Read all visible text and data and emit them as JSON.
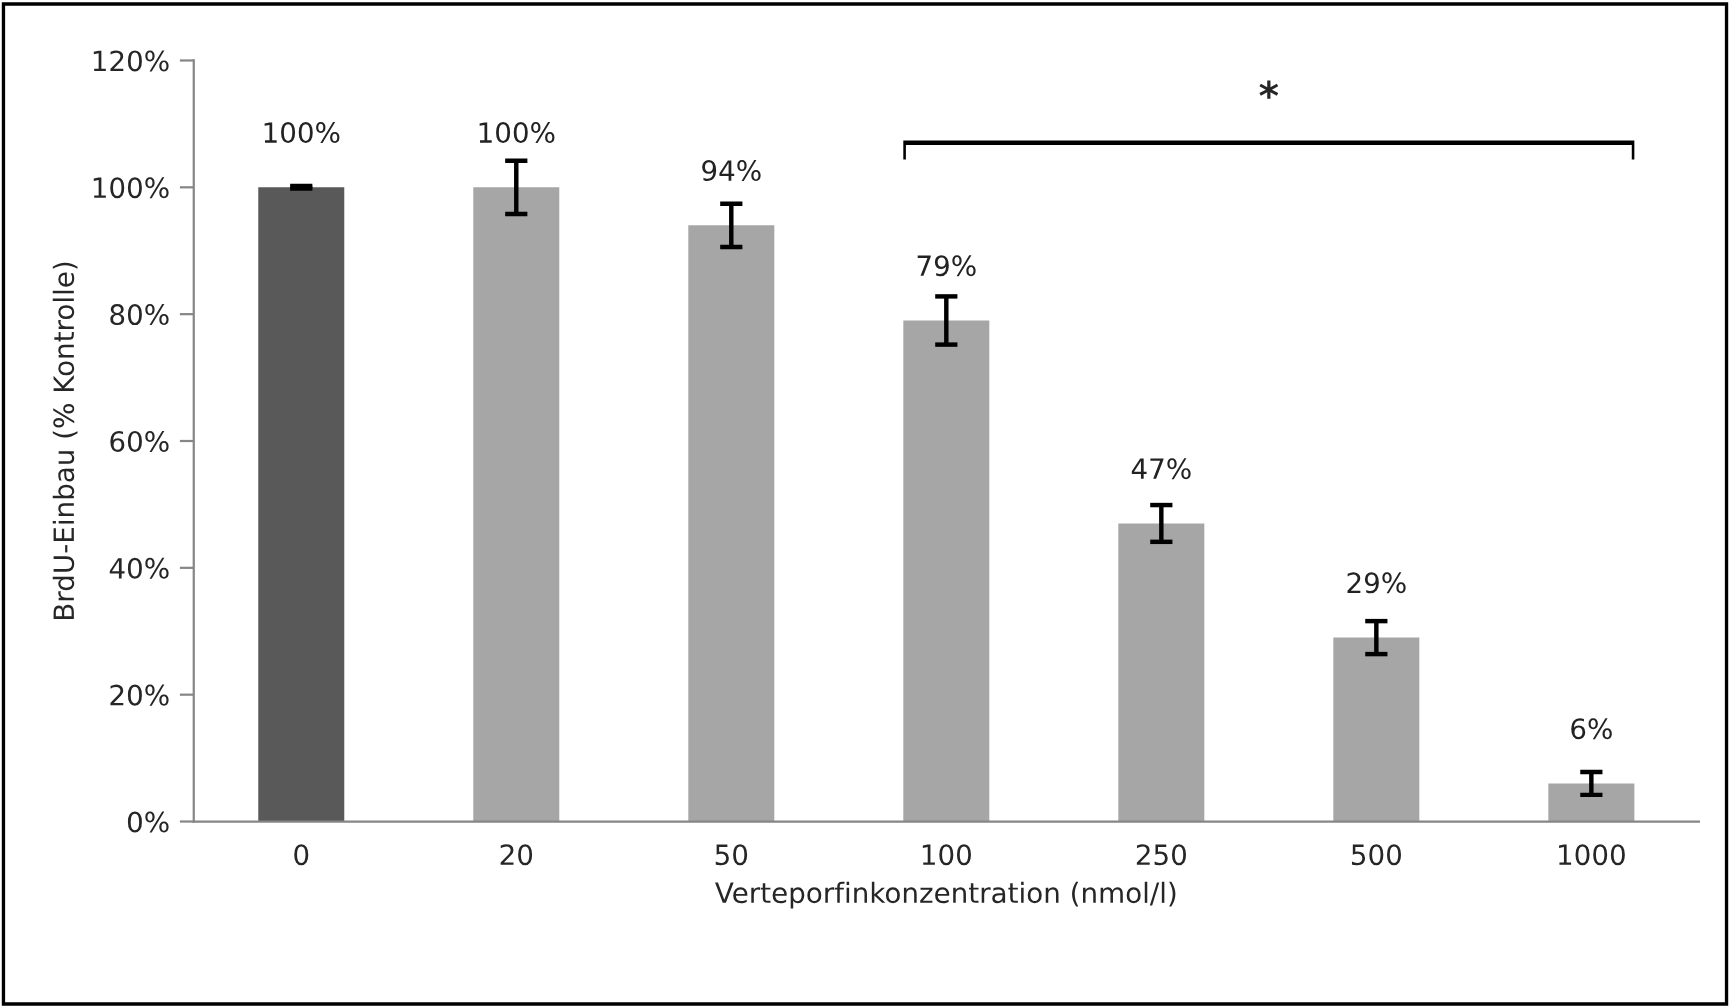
{
  "chart_data": {
    "type": "bar",
    "xlabel": "Verteporfinkonzentration (nmol/l)",
    "ylabel": "BrdU-Einbau (% Kontrolle)",
    "categories": [
      "0",
      "20",
      "50",
      "100",
      "250",
      "500",
      "1000"
    ],
    "values": [
      100,
      100,
      94,
      79,
      47,
      29,
      6
    ],
    "colors": [
      "#595959",
      "#a6a6a6",
      "#a6a6a6",
      "#a6a6a6",
      "#a6a6a6",
      "#a6a6a6",
      "#a6a6a6"
    ],
    "errors": [
      0.2,
      4.2,
      3.4,
      3.8,
      2.9,
      2.6,
      1.8
    ],
    "value_labels": [
      "100%",
      "100%",
      "94%",
      "79%",
      "47%",
      "29%",
      "6%"
    ],
    "annotations": [
      "*"
    ],
    "ylim": [
      0,
      120
    ],
    "yticks": [
      {
        "value": 0,
        "label": "0%"
      },
      {
        "value": 20,
        "label": "20%"
      },
      {
        "value": 40,
        "label": "40%"
      },
      {
        "value": 60,
        "label": "60%"
      },
      {
        "value": 80,
        "label": "80%"
      },
      {
        "value": 100,
        "label": "100%"
      },
      {
        "value": 120,
        "label": "120%"
      }
    ],
    "grid": false,
    "legend": false
  }
}
